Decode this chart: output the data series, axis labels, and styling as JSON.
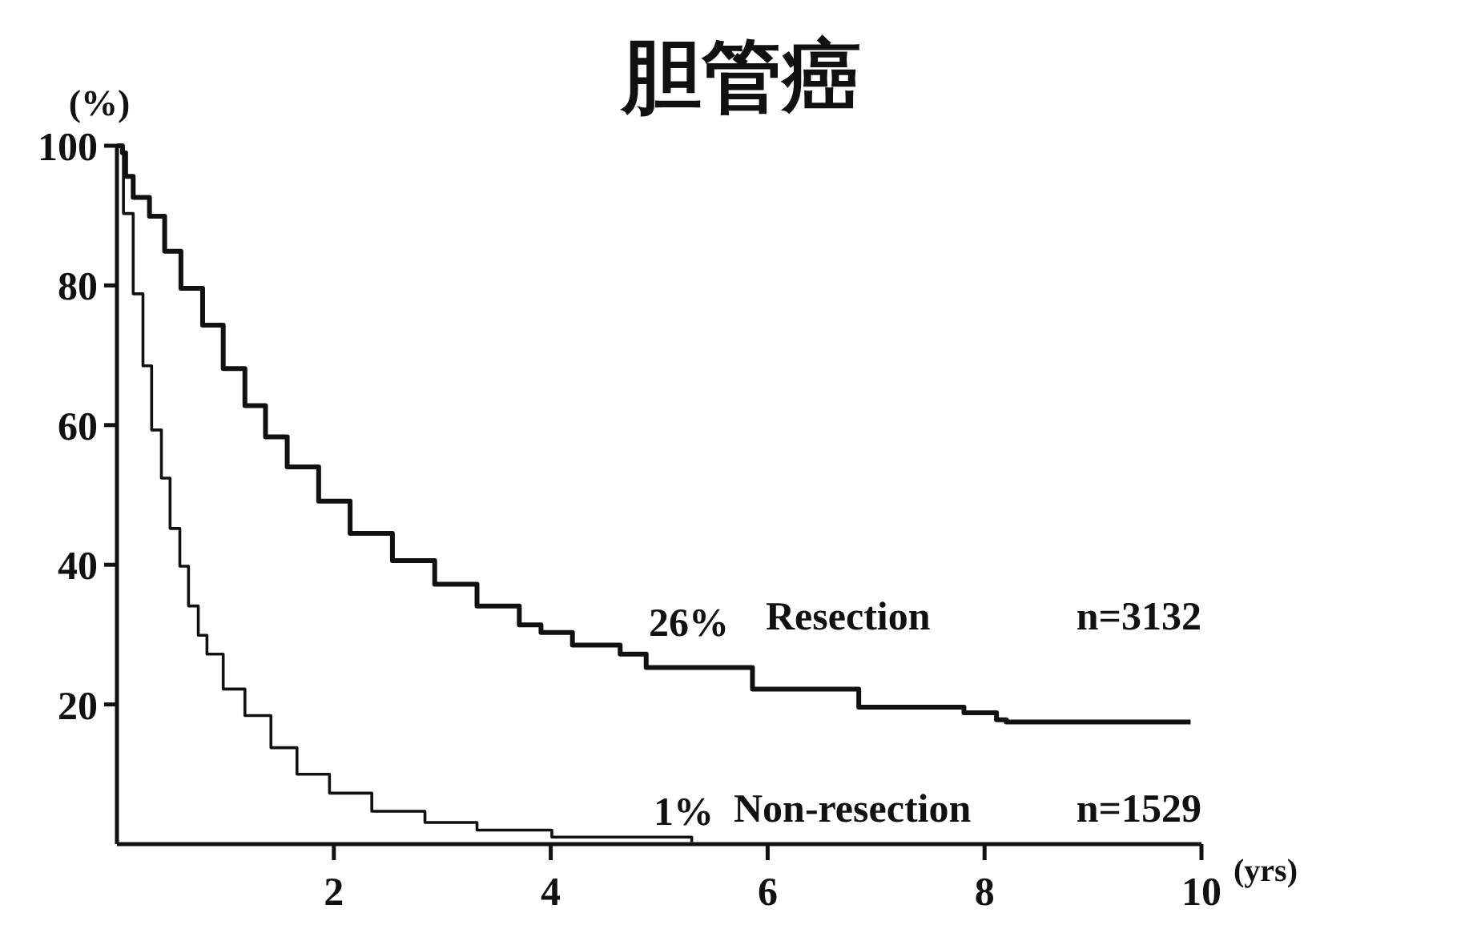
{
  "chart_data": {
    "type": "step",
    "title": "胆管癌",
    "ylabel": "(%)",
    "xlabel": "(yrs)",
    "xlim": [
      0,
      10
    ],
    "ylim": [
      0,
      100
    ],
    "xticks": [
      2,
      4,
      6,
      8,
      10
    ],
    "yticks": [
      20,
      40,
      60,
      80,
      100
    ],
    "grid": false,
    "series": [
      {
        "name": "Resection",
        "color": "#111111",
        "x": [
          0,
          0.05,
          0.08,
          0.15,
          0.3,
          0.44,
          0.59,
          0.79,
          0.98,
          1.18,
          1.37,
          1.57,
          1.86,
          2.15,
          2.54,
          2.93,
          3.32,
          3.71,
          3.91,
          4.2,
          4.64,
          4.88,
          5.86,
          6.84,
          7.81,
          8.11,
          8.2,
          9.9
        ],
        "values": [
          100,
          99,
          95.6,
          92.6,
          89.9,
          84.9,
          79.6,
          74.3,
          68.1,
          62.8,
          58.3,
          54.0,
          49.1,
          44.5,
          40.6,
          37.2,
          34.1,
          31.4,
          30.3,
          28.5,
          27.2,
          25.3,
          22.2,
          19.6,
          18.8,
          17.8,
          17.5,
          17.5
        ]
      },
      {
        "name": "Non-resection",
        "color": "#111111",
        "x": [
          0,
          0.06,
          0.15,
          0.24,
          0.32,
          0.41,
          0.49,
          0.58,
          0.66,
          0.75,
          0.83,
          0.98,
          1.18,
          1.42,
          1.66,
          1.96,
          2.35,
          2.84,
          3.32,
          4.01,
          5.3
        ],
        "values": [
          100,
          90.3,
          78.8,
          68.5,
          59.3,
          52.4,
          45.2,
          39.8,
          34.1,
          29.9,
          27.2,
          22.2,
          18.4,
          13.8,
          10.0,
          7.3,
          4.7,
          3.1,
          2.0,
          1.0,
          0.3
        ]
      }
    ],
    "annotations": [
      "26%",
      "n=3132",
      "1%",
      "n=1529"
    ]
  }
}
